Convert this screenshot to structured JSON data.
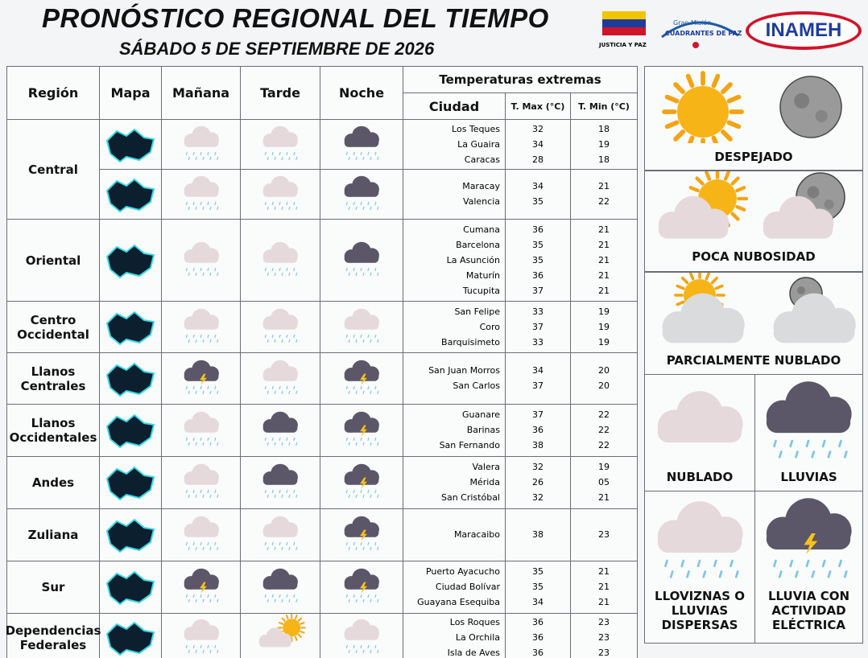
{
  "header": {
    "title": "PRONÓSTICO REGIONAL DEL TIEMPO",
    "date": "SÁBADO 5 DE SEPTIEMBRE DE 2026",
    "logos": {
      "flag_caption": "JUSTICIA Y PAZ",
      "mission_line1": "Gran Misión",
      "mission_line2": "CUADRANTES DE PAZ",
      "institute": "INAMEH"
    }
  },
  "table": {
    "columns": {
      "region": "Región",
      "map": "Mapa",
      "morning": "Mañana",
      "afternoon": "Tarde",
      "night": "Noche",
      "extremes": "Temperaturas extremas",
      "city": "Ciudad",
      "max": "T. Max (°C)",
      "min": "T. Min (°C)"
    },
    "regions": [
      {
        "name": "Central",
        "parts": [
          {
            "cities": [
              [
                "Los Teques",
                "32",
                "18"
              ],
              [
                "La Guaira",
                "34",
                "19"
              ],
              [
                "Caracas",
                "28",
                "18"
              ]
            ]
          },
          {
            "cities": [
              [
                "Maracay",
                "34",
                "21"
              ],
              [
                "Valencia",
                "35",
                "22"
              ]
            ]
          }
        ]
      },
      {
        "name": "Oriental",
        "parts": [
          {
            "cities": [
              [
                "Cumana",
                "36",
                "21"
              ],
              [
                "Barcelona",
                "35",
                "21"
              ],
              [
                "La Asunción",
                "35",
                "21"
              ],
              [
                "Maturín",
                "36",
                "21"
              ],
              [
                "Tucupita",
                "37",
                "21"
              ]
            ]
          }
        ]
      },
      {
        "name": "Centro Occidental",
        "parts": [
          {
            "cities": [
              [
                "San Felipe",
                "33",
                "19"
              ],
              [
                "Coro",
                "37",
                "19"
              ],
              [
                "Barquisimeto",
                "33",
                "19"
              ]
            ]
          }
        ]
      },
      {
        "name": "Llanos Centrales",
        "parts": [
          {
            "cities": [
              [
                "San Juan Morros",
                "34",
                "20"
              ],
              [
                "San Carlos",
                "37",
                "20"
              ]
            ]
          }
        ]
      },
      {
        "name": "Llanos Occidentales",
        "parts": [
          {
            "cities": [
              [
                "Guanare",
                "37",
                "22"
              ],
              [
                "Barinas",
                "36",
                "22"
              ],
              [
                "San Fernando",
                "38",
                "22"
              ]
            ]
          }
        ]
      },
      {
        "name": "Andes",
        "parts": [
          {
            "cities": [
              [
                "Valera",
                "32",
                "19"
              ],
              [
                "Mérida",
                "26",
                "05"
              ],
              [
                "San Cristóbal",
                "32",
                "21"
              ]
            ]
          }
        ]
      },
      {
        "name": "Zuliana",
        "parts": [
          {
            "cities": [
              [
                "Maracaibo",
                "38",
                "23"
              ]
            ]
          }
        ]
      },
      {
        "name": "Sur",
        "parts": [
          {
            "cities": [
              [
                "Puerto Ayacucho",
                "35",
                "21"
              ],
              [
                "Ciudad Bolívar",
                "35",
                "21"
              ],
              [
                "Guayana Esequiba",
                "34",
                "21"
              ]
            ]
          }
        ]
      },
      {
        "name": "Dependencias Federales",
        "parts": [
          {
            "cities": [
              [
                "Los Roques",
                "36",
                "23"
              ],
              [
                "La Orchila",
                "36",
                "23"
              ],
              [
                "Isla de Aves",
                "36",
                "23"
              ]
            ]
          }
        ]
      }
    ]
  },
  "legend": [
    "DESPEJADO",
    "POCA NUBOSIDAD",
    "PARCIALMENTE NUBLADO",
    "NUBLADO",
    "LLUVIAS",
    "LLOVIZNAS O LLUVIAS DISPERSAS",
    "LLUVIA CON ACTIVIDAD ELÉCTRICA"
  ]
}
